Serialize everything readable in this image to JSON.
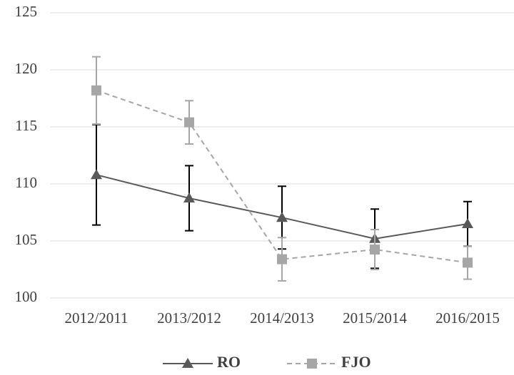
{
  "chart_data": {
    "type": "line",
    "categories": [
      "2012/2011",
      "2013/2012",
      "2014/2013",
      "2015/2014",
      "2016/2015"
    ],
    "series": [
      {
        "name": "RO",
        "color": "#595959",
        "error_color": "#000000",
        "marker": "triangle",
        "line_style": "solid",
        "values": [
          110.8,
          108.75,
          107.05,
          105.2,
          106.5
        ],
        "errors": [
          4.4,
          2.85,
          2.75,
          2.6,
          1.95
        ]
      },
      {
        "name": "FJO",
        "color": "#a6a6a6",
        "error_color": "#a6a6a6",
        "marker": "square",
        "line_style": "dashed",
        "values": [
          118.2,
          115.4,
          103.4,
          104.25,
          103.1
        ],
        "errors": [
          2.95,
          1.9,
          1.9,
          1.75,
          1.45
        ]
      }
    ],
    "ylim": [
      100,
      125
    ],
    "yticks": [
      100,
      105,
      110,
      115,
      120,
      125
    ],
    "grid": true,
    "legend": "bottom"
  }
}
